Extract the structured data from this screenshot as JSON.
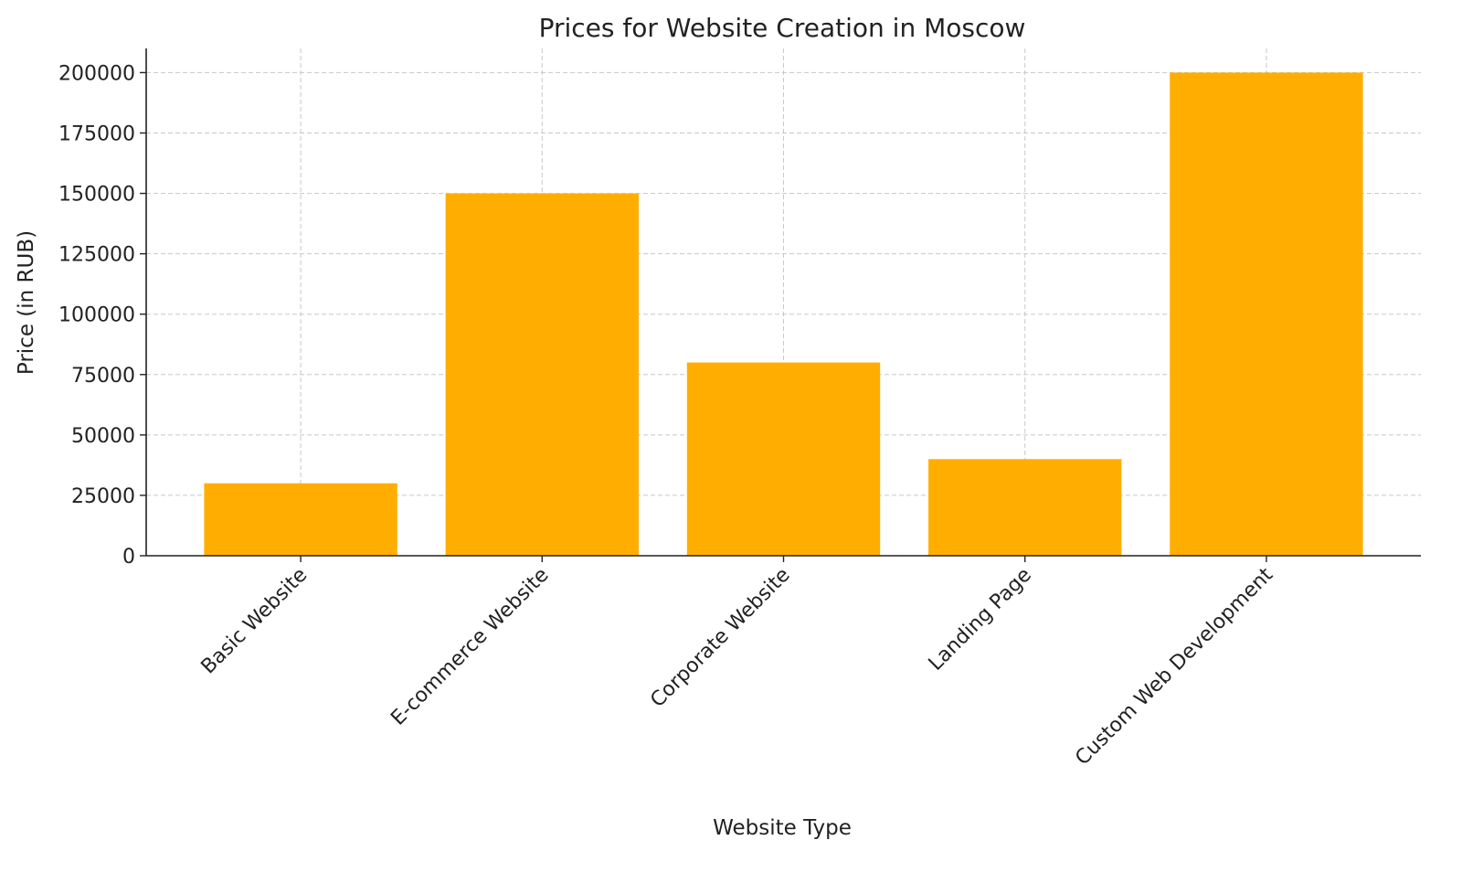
{
  "chart_data": {
    "type": "bar",
    "title": "Prices for Website Creation in Moscow",
    "xlabel": "Website Type",
    "ylabel": "Price (in RUB)",
    "categories": [
      "Basic Website",
      "E-commerce Website",
      "Corporate Website",
      "Landing Page",
      "Custom Web Development"
    ],
    "values": [
      30000,
      150000,
      80000,
      40000,
      200000
    ],
    "ylim": [
      0,
      210000
    ],
    "yticks": [
      0,
      25000,
      50000,
      75000,
      100000,
      125000,
      150000,
      175000,
      200000
    ],
    "grid": true,
    "legend": "none",
    "bar_color": "#FFAE00",
    "x_tick_rotation": 45
  }
}
